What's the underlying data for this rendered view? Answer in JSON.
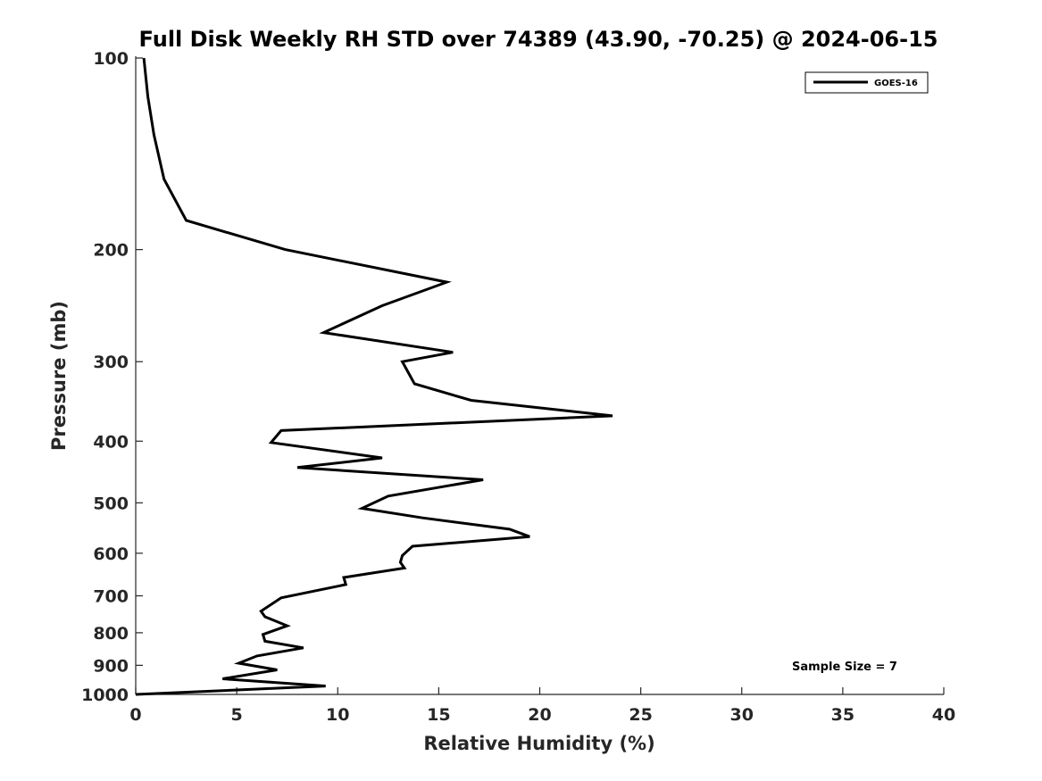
{
  "chart_data": {
    "type": "line",
    "title": "Full Disk Weekly RH STD over 74389 (43.90, -70.25) @ 2024-06-15",
    "xlabel": "Relative Humidity (%)",
    "ylabel": "Pressure (mb)",
    "xlim": [
      0,
      40
    ],
    "ylim": [
      100,
      1000
    ],
    "y_scale": "log",
    "y_reversed": true,
    "grid": false,
    "x_ticks": [
      0,
      5,
      10,
      15,
      20,
      25,
      30,
      35,
      40
    ],
    "x_tick_labels": [
      "0",
      "5",
      "10",
      "15",
      "20",
      "25",
      "30",
      "35",
      "40"
    ],
    "y_ticks": [
      100,
      200,
      300,
      400,
      500,
      600,
      700,
      800,
      900,
      1000
    ],
    "y_tick_labels": [
      "100",
      "200",
      "300",
      "400",
      "500",
      "600",
      "700",
      "800",
      "900",
      "1000"
    ],
    "legend": {
      "position": "top-right",
      "entries": [
        "GOES-16"
      ]
    },
    "annotation": "Sample Size = 7",
    "series": [
      {
        "name": "GOES-16",
        "color": "#000000",
        "x": [
          0.4,
          0.6,
          0.9,
          1.4,
          2.5,
          7.4,
          15.4,
          12.2,
          9.3,
          15.7,
          13.2,
          13.8,
          16.6,
          23.6,
          7.2,
          6.7,
          12.2,
          8.0,
          17.2,
          12.5,
          11.2,
          14.2,
          18.5,
          19.5,
          13.7,
          13.2,
          13.1,
          13.3,
          10.3,
          10.4,
          7.2,
          6.2,
          6.4,
          7.5,
          6.3,
          6.4,
          8.3,
          6.0,
          5.1,
          7.0,
          4.3,
          9.4,
          0.0
        ],
        "y": [
          100,
          115,
          132,
          155,
          180,
          200,
          225,
          245,
          270,
          290,
          300,
          325,
          345,
          365,
          385,
          402,
          425,
          440,
          460,
          488,
          510,
          528,
          550,
          565,
          585,
          605,
          620,
          633,
          655,
          672,
          705,
          740,
          755,
          780,
          805,
          825,
          845,
          870,
          893,
          915,
          945,
          970,
          1000
        ]
      }
    ]
  }
}
